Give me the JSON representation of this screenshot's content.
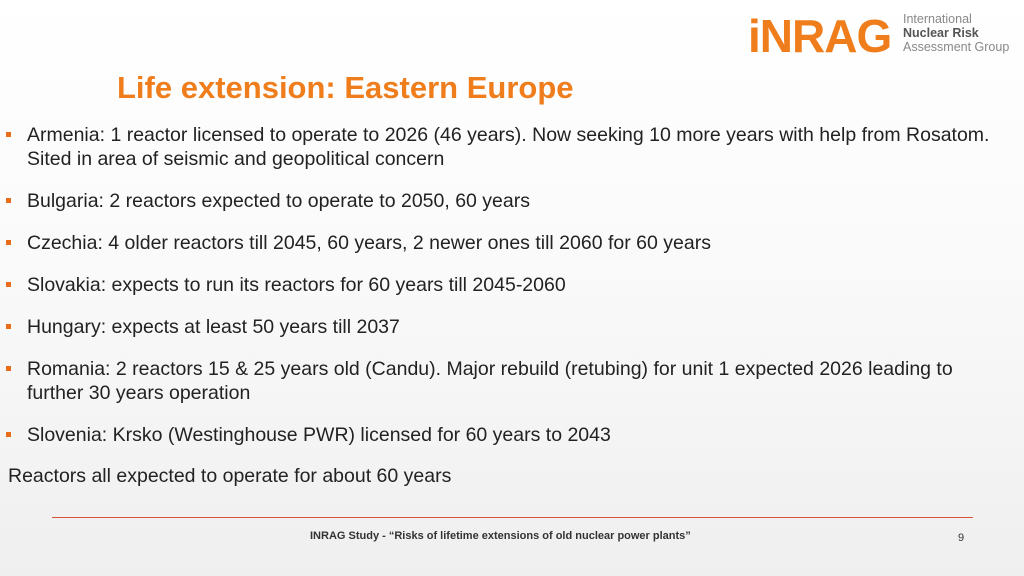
{
  "logo": {
    "mark": "iNRAG",
    "line1": "International",
    "line2": "Nuclear Risk",
    "line3": "Assessment Group"
  },
  "title": "Life extension: Eastern Europe",
  "bullets": [
    "Armenia: 1 reactor licensed to operate to 2026 (46 years). Now seeking 10 more years with help from Rosatom. Sited in area of seismic and geopolitical concern",
    "Bulgaria: 2 reactors expected to operate to 2050, 60 years",
    "Czechia: 4 older reactors till 2045, 60 years, 2 newer ones till 2060 for 60 years",
    "Slovakia: expects to run its reactors for 60 years till 2045-2060",
    "Hungary: expects at least 50 years till 2037",
    "Romania: 2 reactors 15 & 25 years old (Candu). Major rebuild (retubing) for unit 1 expected 2026 leading to further 30 years operation",
    "Slovenia: Krsko (Westinghouse PWR) licensed for 60 years to 2043"
  ],
  "summary": "Reactors all expected to operate for about 60 years",
  "footer": {
    "text": "INRAG Study - “Risks of lifetime extensions of old nuclear power plants”",
    "page": "9"
  },
  "colors": {
    "accent": "#f07d1c",
    "footer_line": "#d9533b"
  }
}
